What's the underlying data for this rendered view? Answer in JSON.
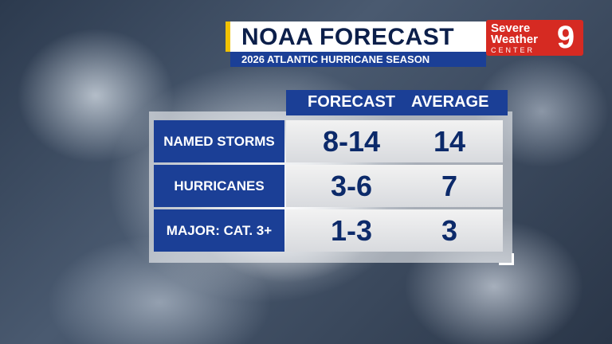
{
  "header": {
    "title": "NOAA FORECAST",
    "subtitle": "2026 ATLANTIC HURRICANE SEASON"
  },
  "logo": {
    "line1": "Severe",
    "line2": "Weather",
    "line3": "CENTER",
    "number": "9"
  },
  "table": {
    "columns": [
      "FORECAST",
      "AVERAGE"
    ],
    "rows": [
      {
        "label": "NAMED STORMS",
        "forecast": "8-14",
        "average": "14"
      },
      {
        "label": "HURRICANES",
        "forecast": "3-6",
        "average": "7"
      },
      {
        "label": "MAJOR: CAT. 3+",
        "forecast": "1-3",
        "average": "3"
      }
    ]
  },
  "colors": {
    "navy": "#1b3f96",
    "accent_yellow": "#f2c200",
    "logo_red": "#d62a22",
    "value_text": "#0c2a6a"
  }
}
